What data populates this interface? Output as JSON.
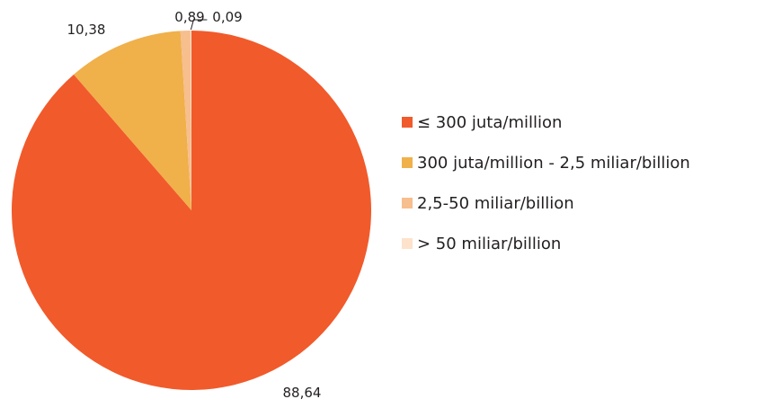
{
  "chart_data": {
    "type": "pie",
    "categories": [
      "≤ 300 juta/million",
      "300 juta/million - 2,5 miliar/billion",
      "2,5-50 miliar/billion",
      "> 50 miliar/billion"
    ],
    "values": [
      88.64,
      10.38,
      0.89,
      0.09
    ],
    "value_labels": [
      "88,64",
      "10,38",
      "0,89",
      "0,09"
    ],
    "colors": [
      "#f15a2b",
      "#f0b04a",
      "#f7be8e",
      "#fde2cc"
    ],
    "start_angle": "12 o'clock",
    "direction": "clockwise",
    "legend_position": "right"
  }
}
